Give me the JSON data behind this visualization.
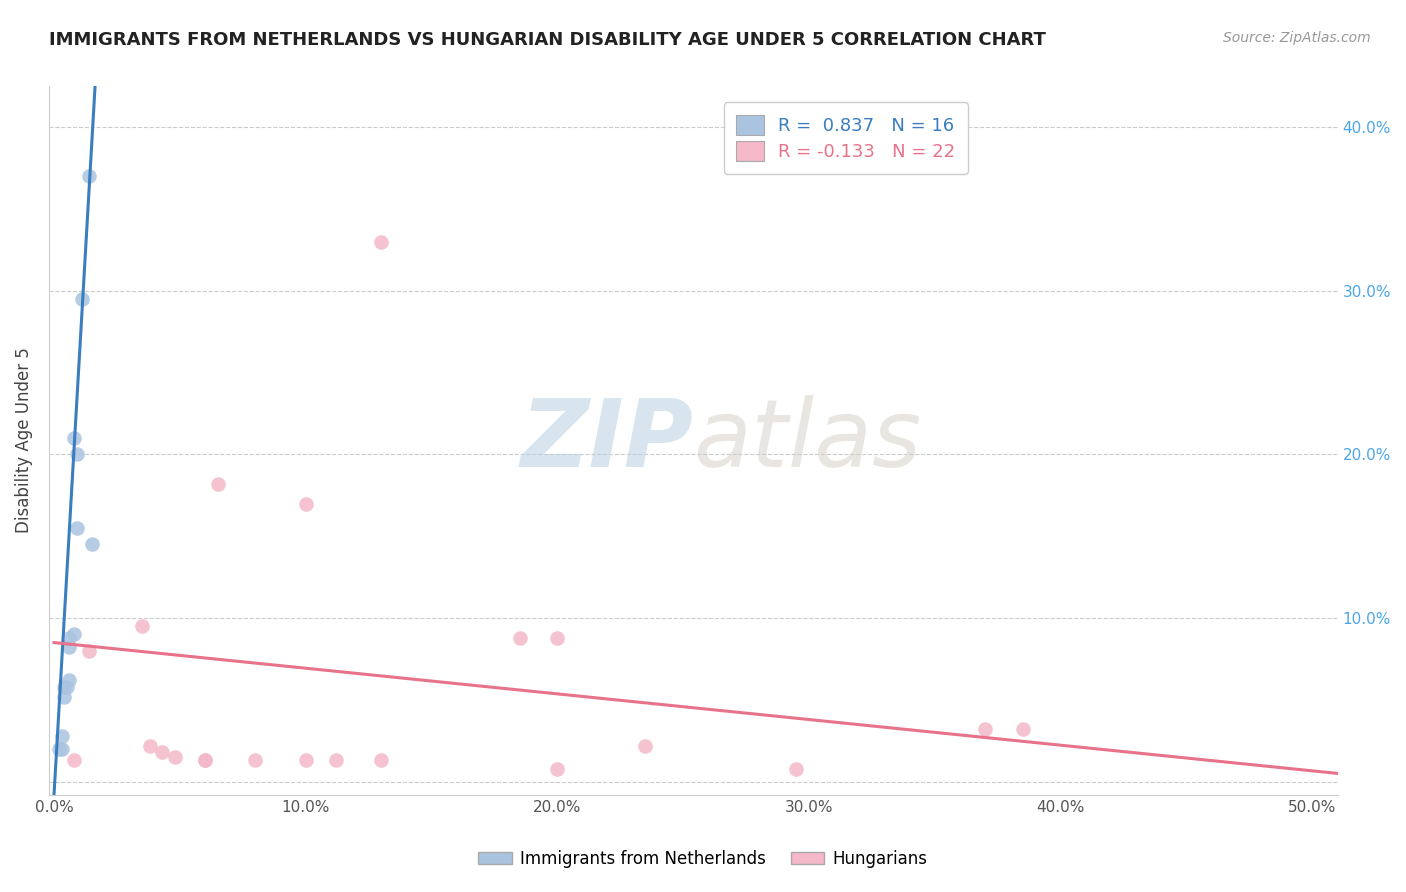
{
  "title": "IMMIGRANTS FROM NETHERLANDS VS HUNGARIAN DISABILITY AGE UNDER 5 CORRELATION CHART",
  "source": "Source: ZipAtlas.com",
  "ylabel_label": "Disability Age Under 5",
  "legend_label1": "Immigrants from Netherlands",
  "legend_label2": "Hungarians",
  "R1": 0.837,
  "N1": 16,
  "R2": -0.133,
  "N2": 22,
  "xlim": [
    -0.002,
    0.51
  ],
  "ylim": [
    -0.008,
    0.425
  ],
  "x_ticks": [
    0.0,
    0.1,
    0.2,
    0.3,
    0.4,
    0.5
  ],
  "x_tick_labels": [
    "0.0%",
    "10.0%",
    "20.0%",
    "30.0%",
    "40.0%",
    "50.0%"
  ],
  "y_ticks": [
    0.0,
    0.1,
    0.2,
    0.3,
    0.4
  ],
  "y_tick_labels_left": [
    "",
    "",
    "",
    "",
    ""
  ],
  "y_tick_labels_right": [
    "",
    "10.0%",
    "20.0%",
    "30.0%",
    "40.0%"
  ],
  "color_blue": "#aac4e0",
  "color_pink": "#f4b8c8",
  "line_blue": "#3a7ebf",
  "line_pink": "#e8728a",
  "watermark_zip": "ZIP",
  "watermark_atlas": "atlas",
  "blue_scatter_x": [
    0.014,
    0.011,
    0.015,
    0.009,
    0.008,
    0.009,
    0.008,
    0.006,
    0.006,
    0.006,
    0.005,
    0.004,
    0.004,
    0.003,
    0.003,
    0.002
  ],
  "blue_scatter_y": [
    0.37,
    0.295,
    0.145,
    0.2,
    0.21,
    0.155,
    0.09,
    0.088,
    0.082,
    0.062,
    0.058,
    0.058,
    0.052,
    0.028,
    0.02,
    0.02
  ],
  "pink_scatter_x": [
    0.035,
    0.13,
    0.065,
    0.1,
    0.185,
    0.2,
    0.235,
    0.295,
    0.37,
    0.385,
    0.038,
    0.043,
    0.048,
    0.06,
    0.06,
    0.08,
    0.1,
    0.112,
    0.13,
    0.2,
    0.008,
    0.014
  ],
  "pink_scatter_y": [
    0.095,
    0.33,
    0.182,
    0.17,
    0.088,
    0.088,
    0.022,
    0.008,
    0.032,
    0.032,
    0.022,
    0.018,
    0.015,
    0.013,
    0.013,
    0.013,
    0.013,
    0.013,
    0.013,
    0.008,
    0.013,
    0.08
  ],
  "blue_line_x": [
    0.0,
    0.0165
  ],
  "blue_line_y": [
    -0.008,
    0.43
  ],
  "pink_line_x": [
    0.0,
    0.51
  ],
  "pink_line_y": [
    0.085,
    0.005
  ]
}
